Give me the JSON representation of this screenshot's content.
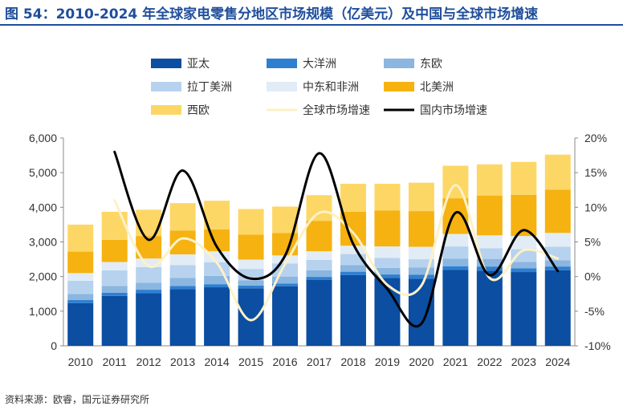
{
  "title": "图 54：2010-2024 年全球家电零售分地区市场规模（亿美元）及中国与全球市场增速",
  "source": "资料来源：欧睿，国元证券研究所",
  "chart_data": {
    "type": "bar",
    "stacked": true,
    "categories": [
      "2010",
      "2011",
      "2012",
      "2013",
      "2014",
      "2015",
      "2016",
      "2017",
      "2018",
      "2019",
      "2020",
      "2021",
      "2022",
      "2023",
      "2024"
    ],
    "y_left": {
      "lim": [
        0,
        6000
      ],
      "ticks": [
        "0",
        "1,000",
        "2,000",
        "3,000",
        "4,000",
        "5,000",
        "6,000"
      ]
    },
    "y_right": {
      "lim": [
        -10,
        20
      ],
      "ticks": [
        "-10%",
        "-5%",
        "0%",
        "5%",
        "10%",
        "15%",
        "20%"
      ]
    },
    "grid": false,
    "legend_position": "top",
    "series": [
      {
        "name": "亚太",
        "color": "#0b4ea2",
        "values": [
          1230,
          1440,
          1520,
          1640,
          1690,
          1660,
          1720,
          1900,
          2040,
          1960,
          1940,
          2190,
          2170,
          2130,
          2180
        ]
      },
      {
        "name": "大洋洲",
        "color": "#2f7fd1",
        "values": [
          90,
          90,
          100,
          90,
          90,
          80,
          80,
          90,
          100,
          100,
          110,
          110,
          120,
          110,
          110
        ]
      },
      {
        "name": "东欧",
        "color": "#8ab6e0",
        "values": [
          180,
          200,
          200,
          230,
          240,
          150,
          200,
          190,
          190,
          190,
          210,
          220,
          220,
          180,
          180
        ]
      },
      {
        "name": "拉丁美洲",
        "color": "#b7d2ee",
        "values": [
          380,
          450,
          450,
          370,
          390,
          330,
          380,
          300,
          320,
          290,
          240,
          350,
          310,
          370,
          390
        ]
      },
      {
        "name": "中东和非洲",
        "color": "#e2ecf6",
        "values": [
          220,
          240,
          250,
          310,
          320,
          270,
          230,
          250,
          240,
          330,
          360,
          360,
          370,
          380,
          400
        ]
      },
      {
        "name": "北美洲",
        "color": "#f5b211",
        "values": [
          620,
          640,
          650,
          690,
          630,
          720,
          650,
          880,
          980,
          1040,
          1030,
          1030,
          1150,
          1190,
          1250
        ]
      },
      {
        "name": "西欧",
        "color": "#fdd766",
        "values": [
          780,
          810,
          760,
          790,
          830,
          740,
          760,
          740,
          810,
          770,
          820,
          940,
          900,
          950,
          1010
        ]
      }
    ],
    "lines": [
      {
        "name": "全球市场增速",
        "color": "#fdf1c7",
        "axis": "right",
        "values": [
          null,
          11,
          1.5,
          5.5,
          2,
          -6.3,
          1.8,
          9.2,
          6.3,
          -1.2,
          -1.3,
          13.2,
          -0.2,
          3.8,
          2.6
        ]
      },
      {
        "name": "国内市场增速",
        "color": "#000000",
        "axis": "right",
        "values": [
          null,
          18,
          5.3,
          15.3,
          4.3,
          -0.3,
          3,
          17.8,
          4.7,
          -1.8,
          -6.8,
          9.2,
          0.2,
          6.7,
          0.8
        ]
      }
    ]
  }
}
